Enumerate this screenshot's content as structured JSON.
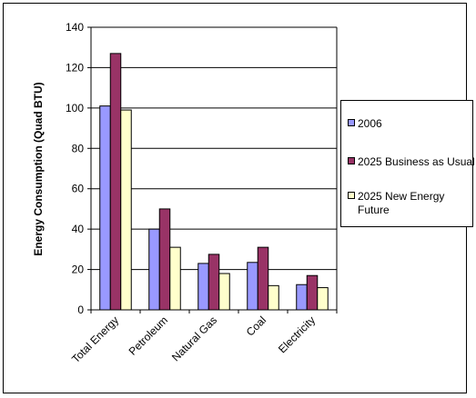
{
  "chart_data": {
    "type": "bar",
    "categories": [
      "Total Energy",
      "Petroleum",
      "Natural Gas",
      "Coal",
      "Electricity"
    ],
    "series": [
      {
        "name": "2006",
        "values": [
          101,
          40,
          23,
          23.5,
          12.5
        ],
        "color": "#9999FF"
      },
      {
        "name": "2025 Business as Usual",
        "values": [
          127,
          50,
          27.5,
          31,
          17
        ],
        "color": "#993366"
      },
      {
        "name": "2025 New Energy Future",
        "values": [
          99,
          31,
          18,
          12,
          11
        ],
        "color": "#FFFFCC"
      }
    ],
    "ylabel": "Energy Consumption (Quad BTU)",
    "ylim": [
      0,
      140
    ],
    "yticks": [
      0,
      20,
      40,
      60,
      80,
      100,
      120,
      140
    ],
    "grid": true,
    "legend_position": "right"
  },
  "legend": {
    "items": [
      {
        "label": "2006",
        "color": "#9999FF"
      },
      {
        "label": "2025 Business as Usual",
        "color": "#993366"
      },
      {
        "label": "2025 New Energy Future",
        "color": "#FFFFCC"
      }
    ]
  }
}
